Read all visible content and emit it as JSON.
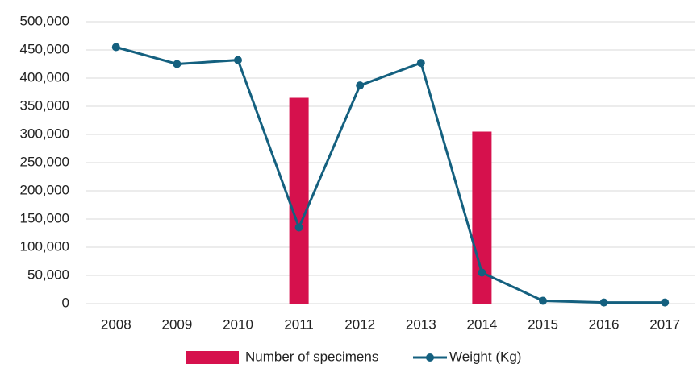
{
  "chart_data": {
    "type": "combo",
    "categories": [
      "2008",
      "2009",
      "2010",
      "2011",
      "2012",
      "2013",
      "2014",
      "2015",
      "2016",
      "2017"
    ],
    "series": [
      {
        "name": "Number of specimens",
        "type": "bar",
        "color": "#d6114d",
        "values": [
          null,
          null,
          null,
          365000,
          null,
          null,
          305000,
          null,
          null,
          null
        ]
      },
      {
        "name": "Weight (Kg)",
        "type": "line",
        "color": "#14607f",
        "values": [
          455000,
          425000,
          432000,
          135000,
          387000,
          427000,
          55000,
          5000,
          2000,
          2000
        ]
      }
    ],
    "ylim": [
      0,
      500000
    ],
    "yticks": [
      {
        "value": 0,
        "label": "0"
      },
      {
        "value": 50000,
        "label": "50,000"
      },
      {
        "value": 100000,
        "label": "100,000"
      },
      {
        "value": 150000,
        "label": "150,000"
      },
      {
        "value": 200000,
        "label": "200,000"
      },
      {
        "value": 250000,
        "label": "250,000"
      },
      {
        "value": 300000,
        "label": "300,000"
      },
      {
        "value": 350000,
        "label": "350,000"
      },
      {
        "value": 400000,
        "label": "400,000"
      },
      {
        "value": 450000,
        "label": "450,000"
      },
      {
        "value": 500000,
        "label": "500,000"
      }
    ],
    "grid": true,
    "legend": "bottom"
  }
}
